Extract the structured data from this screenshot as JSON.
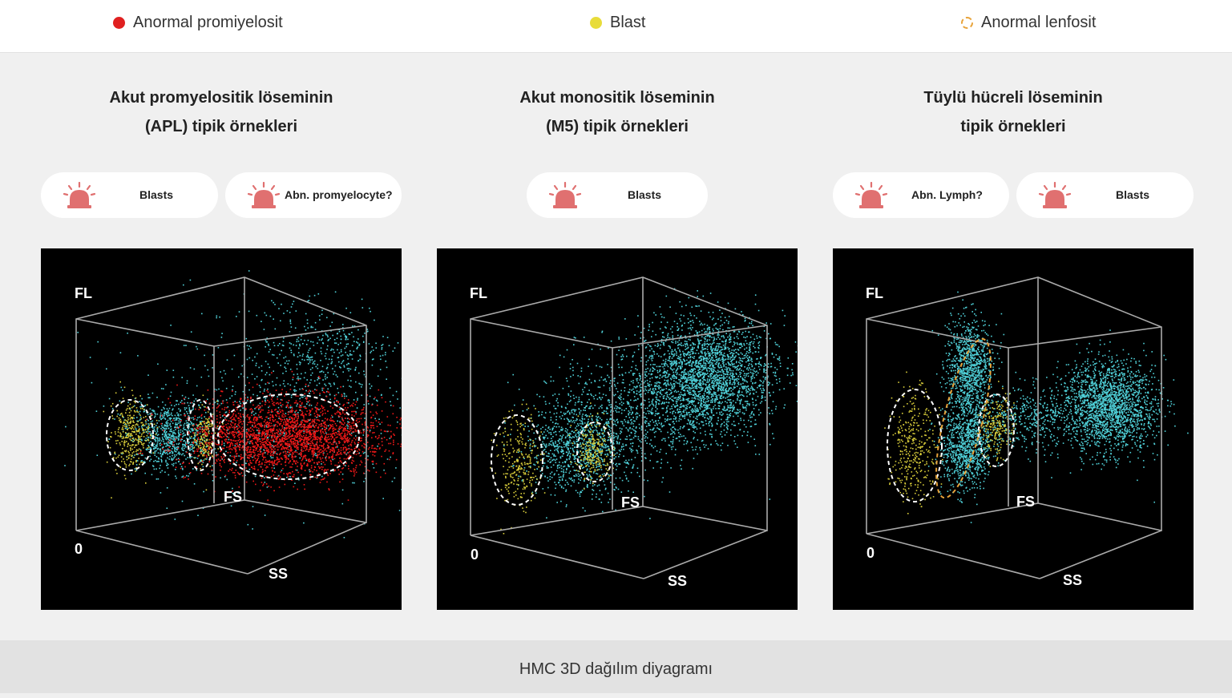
{
  "legend": {
    "items": [
      {
        "label": "Anormal promiyelosit",
        "color": "#e02020",
        "style": "filled"
      },
      {
        "label": "Blast",
        "color": "#e8dc3a",
        "style": "filled"
      },
      {
        "label": "Anormal lenfosit",
        "color": "#e8a33a",
        "style": "dashed"
      }
    ]
  },
  "columns": [
    {
      "title_line1": "Akut promyelositik löseminin",
      "title_line2": "(APL) tipik örnekleri",
      "flags": [
        {
          "label": "Blasts",
          "icon": "alarm-icon"
        },
        {
          "label": "Abn. promyelocyte?",
          "icon": "alarm-icon"
        }
      ],
      "axes": {
        "fl": "FL",
        "fs": "FS",
        "ss": "SS",
        "origin": "0"
      }
    },
    {
      "title_line1": "Akut monositik löseminin",
      "title_line2": "(M5) tipik örnekleri",
      "flags": [
        {
          "label": "Blasts",
          "icon": "alarm-icon"
        }
      ],
      "axes": {
        "fl": "FL",
        "fs": "FS",
        "ss": "SS",
        "origin": "0"
      }
    },
    {
      "title_line1": "Tüylü hücreli löseminin",
      "title_line2": "tipik örnekleri",
      "flags": [
        {
          "label": "Abn. Lymph?",
          "icon": "alarm-icon"
        },
        {
          "label": "Blasts",
          "icon": "alarm-icon"
        }
      ],
      "axes": {
        "fl": "FL",
        "fs": "FS",
        "ss": "SS",
        "origin": "0"
      }
    }
  ],
  "colors": {
    "cyan_cells": "#4fd0d8",
    "yellow_cells": "#d8cc3a",
    "red_cells": "#f01818",
    "alarm": "#e07070",
    "plot_bg": "#000000"
  },
  "footer": {
    "caption": "HMC 3D dağılım diyagramı"
  }
}
